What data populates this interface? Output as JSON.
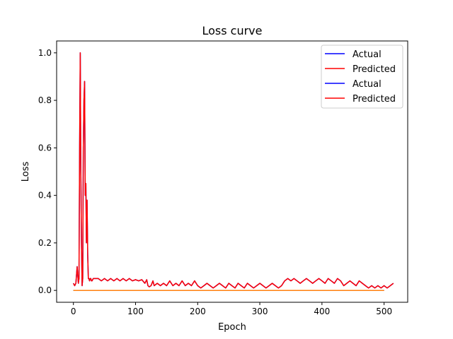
{
  "chart_data": {
    "type": "line",
    "title": "Loss curve",
    "xlabel": "Epoch",
    "ylabel": "Loss",
    "xlim": [
      -27,
      538
    ],
    "ylim": [
      -0.05,
      1.05
    ],
    "x_ticks": [
      0,
      100,
      200,
      300,
      400,
      500
    ],
    "y_ticks": [
      0.0,
      0.2,
      0.4,
      0.6,
      0.8,
      1.0
    ],
    "x_tick_labels": [
      "0",
      "100",
      "200",
      "300",
      "400",
      "500"
    ],
    "y_tick_labels": [
      "0.0",
      "0.2",
      "0.4",
      "0.6",
      "0.8",
      "1.0"
    ],
    "grid": false,
    "legend_position": "top-right",
    "series": [
      {
        "name": "Actual",
        "color": "#0000ff",
        "x": [
          0,
          2,
          4,
          6,
          8,
          9,
          10,
          11,
          12,
          13,
          14,
          15,
          16,
          17,
          18,
          19,
          20,
          21,
          22,
          23,
          24,
          25,
          26,
          27,
          28,
          29,
          30,
          32,
          35,
          38,
          40,
          45,
          50,
          55,
          60,
          65,
          70,
          75,
          80,
          85,
          90,
          95,
          100,
          105,
          110,
          115,
          118,
          120,
          122,
          125,
          128,
          130,
          135,
          140,
          145,
          150,
          155,
          160,
          165,
          170,
          175,
          180,
          185,
          190,
          195,
          200,
          205,
          210,
          215,
          220,
          225,
          230,
          235,
          240,
          245,
          250,
          255,
          260,
          265,
          270,
          275,
          280,
          285,
          290,
          295,
          300,
          305,
          310,
          315,
          320,
          325,
          330,
          335,
          340,
          345,
          350,
          355,
          360,
          365,
          370,
          375,
          380,
          385,
          390,
          395,
          400,
          405,
          410,
          415,
          420,
          425,
          430,
          435,
          440,
          445,
          450,
          455,
          460,
          465,
          470,
          475,
          480,
          485,
          490,
          495,
          500,
          505,
          510,
          515
        ],
        "y": [
          0.03,
          0.02,
          0.03,
          0.1,
          0.03,
          0.05,
          0.6,
          1.0,
          0.5,
          0.2,
          0.02,
          0.05,
          0.6,
          0.8,
          0.88,
          0.4,
          0.45,
          0.2,
          0.38,
          0.15,
          0.05,
          0.05,
          0.04,
          0.05,
          0.05,
          0.04,
          0.04,
          0.05,
          0.05,
          0.05,
          0.05,
          0.04,
          0.05,
          0.04,
          0.05,
          0.04,
          0.05,
          0.04,
          0.05,
          0.04,
          0.05,
          0.04,
          0.045,
          0.04,
          0.045,
          0.03,
          0.045,
          0.02,
          0.015,
          0.02,
          0.04,
          0.02,
          0.03,
          0.02,
          0.03,
          0.02,
          0.04,
          0.02,
          0.03,
          0.02,
          0.04,
          0.02,
          0.03,
          0.02,
          0.04,
          0.02,
          0.01,
          0.02,
          0.03,
          0.02,
          0.01,
          0.02,
          0.03,
          0.02,
          0.01,
          0.03,
          0.02,
          0.01,
          0.03,
          0.02,
          0.01,
          0.03,
          0.02,
          0.01,
          0.02,
          0.03,
          0.02,
          0.01,
          0.02,
          0.03,
          0.02,
          0.01,
          0.02,
          0.04,
          0.05,
          0.04,
          0.05,
          0.04,
          0.03,
          0.04,
          0.05,
          0.04,
          0.03,
          0.04,
          0.05,
          0.04,
          0.03,
          0.05,
          0.04,
          0.03,
          0.05,
          0.04,
          0.02,
          0.03,
          0.04,
          0.03,
          0.02,
          0.04,
          0.03,
          0.02,
          0.01,
          0.02,
          0.01,
          0.02,
          0.01,
          0.02,
          0.01,
          0.02,
          0.03
        ]
      },
      {
        "name": "Predicted",
        "color": "#ff0000",
        "x": [
          0,
          2,
          4,
          6,
          8,
          9,
          10,
          11,
          12,
          13,
          14,
          15,
          16,
          17,
          18,
          19,
          20,
          21,
          22,
          23,
          24,
          25,
          26,
          27,
          28,
          29,
          30,
          32,
          35,
          38,
          40,
          45,
          50,
          55,
          60,
          65,
          70,
          75,
          80,
          85,
          90,
          95,
          100,
          105,
          110,
          115,
          118,
          120,
          122,
          125,
          128,
          130,
          135,
          140,
          145,
          150,
          155,
          160,
          165,
          170,
          175,
          180,
          185,
          190,
          195,
          200,
          205,
          210,
          215,
          220,
          225,
          230,
          235,
          240,
          245,
          250,
          255,
          260,
          265,
          270,
          275,
          280,
          285,
          290,
          295,
          300,
          305,
          310,
          315,
          320,
          325,
          330,
          335,
          340,
          345,
          350,
          355,
          360,
          365,
          370,
          375,
          380,
          385,
          390,
          395,
          400,
          405,
          410,
          415,
          420,
          425,
          430,
          435,
          440,
          445,
          450,
          455,
          460,
          465,
          470,
          475,
          480,
          485,
          490,
          495,
          500,
          505,
          510,
          515
        ],
        "y": [
          0.03,
          0.02,
          0.03,
          0.1,
          0.03,
          0.05,
          0.6,
          1.0,
          0.5,
          0.2,
          0.02,
          0.05,
          0.6,
          0.8,
          0.88,
          0.4,
          0.45,
          0.2,
          0.38,
          0.15,
          0.05,
          0.05,
          0.04,
          0.05,
          0.05,
          0.04,
          0.04,
          0.05,
          0.05,
          0.05,
          0.05,
          0.04,
          0.05,
          0.04,
          0.05,
          0.04,
          0.05,
          0.04,
          0.05,
          0.04,
          0.05,
          0.04,
          0.045,
          0.04,
          0.045,
          0.03,
          0.045,
          0.02,
          0.015,
          0.02,
          0.04,
          0.02,
          0.03,
          0.02,
          0.03,
          0.02,
          0.04,
          0.02,
          0.03,
          0.02,
          0.04,
          0.02,
          0.03,
          0.02,
          0.04,
          0.02,
          0.01,
          0.02,
          0.03,
          0.02,
          0.01,
          0.02,
          0.03,
          0.02,
          0.01,
          0.03,
          0.02,
          0.01,
          0.03,
          0.02,
          0.01,
          0.03,
          0.02,
          0.01,
          0.02,
          0.03,
          0.02,
          0.01,
          0.02,
          0.03,
          0.02,
          0.01,
          0.02,
          0.04,
          0.05,
          0.04,
          0.05,
          0.04,
          0.03,
          0.04,
          0.05,
          0.04,
          0.03,
          0.04,
          0.05,
          0.04,
          0.03,
          0.05,
          0.04,
          0.03,
          0.05,
          0.04,
          0.02,
          0.03,
          0.04,
          0.03,
          0.02,
          0.04,
          0.03,
          0.02,
          0.01,
          0.02,
          0.01,
          0.02,
          0.01,
          0.02,
          0.01,
          0.02,
          0.03
        ]
      },
      {
        "name": "Actual",
        "color": "#0000ff",
        "x": [
          0,
          100,
          200,
          300,
          400,
          500
        ],
        "y": [
          0.0,
          0.0,
          0.0,
          0.0,
          0.0,
          0.0
        ]
      },
      {
        "name": "Predicted",
        "color": "#ff0000",
        "x": [
          0,
          100,
          200,
          300,
          400,
          500
        ],
        "y": [
          0.0,
          0.0,
          0.0,
          0.0,
          0.0,
          0.0
        ]
      },
      {
        "color": "#1f77b4",
        "x": [
          0,
          100,
          200,
          300,
          400,
          500
        ],
        "y": [
          0.0,
          0.0,
          0.0,
          0.0,
          0.0,
          0.0
        ]
      },
      {
        "color": "#ff7f0e",
        "x": [
          0,
          100,
          200,
          300,
          400,
          500
        ],
        "y": [
          0.0,
          0.0,
          0.0,
          0.0,
          0.0,
          0.0
        ]
      }
    ],
    "legend": [
      "Actual",
      "Predicted",
      "Actual",
      "Predicted"
    ],
    "legend_colors": [
      "#0000ff",
      "#ff0000",
      "#0000ff",
      "#ff0000"
    ]
  }
}
